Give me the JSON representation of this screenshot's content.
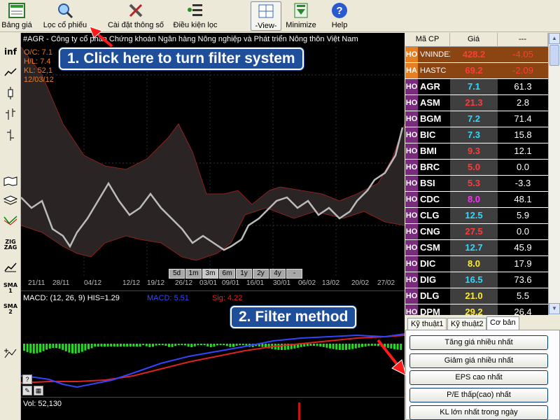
{
  "toolbar": {
    "items": [
      {
        "label": "Bảng giá",
        "icon": "price-board-icon"
      },
      {
        "label": "Lọc cổ phiếu",
        "icon": "magnifier-icon"
      },
      {
        "label": "Cài đặt thông số",
        "icon": "tools-icon"
      },
      {
        "label": "Điều kiện lọc",
        "icon": "filter-conditions-icon"
      },
      {
        "label": "-View-",
        "icon": "view-grid-icon"
      },
      {
        "label": "Minimize",
        "icon": "minimize-icon"
      },
      {
        "label": "Help",
        "icon": "help-icon"
      }
    ]
  },
  "left_tools": [
    "inf",
    "ZIG ZAG",
    "SMA 1",
    "SMA 2"
  ],
  "chart": {
    "title": "#AGR - Công ty cổ phần Chứng khoán Ngân hàng Nông nghiệp và Phát triển Nông thôn Việt Nam",
    "ohl": [
      "O/C: 7.1",
      "H/L: 7.4",
      "KL: 52,1",
      "12/03/12"
    ],
    "periods": [
      "5d",
      "1m",
      "3m",
      "6m",
      "1y",
      "2y",
      "4y",
      "-"
    ],
    "active_period": "3m",
    "dates": [
      "21/11",
      "28/11",
      "04/12",
      "12/12",
      "19/12",
      "26/12",
      "03/01",
      "09/01",
      "16/01",
      "30/01",
      "06/02",
      "13/02",
      "20/02",
      "27/02"
    ],
    "macd_label": "MACD: (12, 26, 9) HIS=1.29",
    "macd_value": "MACD: 5.51",
    "sig_value": "Sig: 4.22",
    "vol_label": "Vol: 52,130",
    "colors": {
      "price": "#bbbbbb",
      "band": "#8b2020",
      "macd": "#3344ff",
      "signal": "#dd2222",
      "hist": "#22dd22"
    }
  },
  "callouts": {
    "c1": "1. Click here to turn filter system",
    "c2": "2. Filter method"
  },
  "quotes": {
    "headers": [
      "Mã CP",
      "Giá",
      "---"
    ],
    "rows": [
      {
        "ex": "HO",
        "sym": "VNINDEX",
        "price": "428.2",
        "chg": "-4.05",
        "pc": "#ff3b3b",
        "cc": "#ff3b3b",
        "idx": true
      },
      {
        "ex": "HA",
        "sym": "HASTC",
        "price": "69.2",
        "chg": "-2.09",
        "pc": "#ff3b3b",
        "cc": "#ff3b3b",
        "idx": true
      },
      {
        "ex": "HO",
        "sym": "AGR",
        "price": "7.1",
        "chg": "61.3",
        "pc": "#2fd9ff",
        "cc": "#ffffff"
      },
      {
        "ex": "HO",
        "sym": "ASM",
        "price": "21.3",
        "chg": "2.8",
        "pc": "#ff3b3b",
        "cc": "#ffffff"
      },
      {
        "ex": "HO",
        "sym": "BGM",
        "price": "7.2",
        "chg": "71.4",
        "pc": "#2fd9ff",
        "cc": "#ffffff"
      },
      {
        "ex": "HO",
        "sym": "BIC",
        "price": "7.3",
        "chg": "15.8",
        "pc": "#2fd9ff",
        "cc": "#ffffff"
      },
      {
        "ex": "HO",
        "sym": "BMI",
        "price": "9.3",
        "chg": "12.1",
        "pc": "#ff3b3b",
        "cc": "#ffffff"
      },
      {
        "ex": "HO",
        "sym": "BRC",
        "price": "5.0",
        "chg": "0.0",
        "pc": "#ff3b3b",
        "cc": "#ffffff"
      },
      {
        "ex": "HO",
        "sym": "BSI",
        "price": "5.3",
        "chg": "-3.3",
        "pc": "#ff3b3b",
        "cc": "#ffffff"
      },
      {
        "ex": "HO",
        "sym": "CDC",
        "price": "8.0",
        "chg": "48.1",
        "pc": "#ff2cff",
        "cc": "#ffffff"
      },
      {
        "ex": "HO",
        "sym": "CLG",
        "price": "12.5",
        "chg": "5.9",
        "pc": "#2fd9ff",
        "cc": "#ffffff"
      },
      {
        "ex": "HO",
        "sym": "CNG",
        "price": "27.5",
        "chg": "0.0",
        "pc": "#ff3b3b",
        "cc": "#ffffff"
      },
      {
        "ex": "HO",
        "sym": "CSM",
        "price": "12.7",
        "chg": "45.9",
        "pc": "#2fd9ff",
        "cc": "#ffffff"
      },
      {
        "ex": "HO",
        "sym": "DIC",
        "price": "8.0",
        "chg": "17.9",
        "pc": "#ffee22",
        "cc": "#ffffff"
      },
      {
        "ex": "HO",
        "sym": "DIG",
        "price": "16.5",
        "chg": "73.6",
        "pc": "#2fd9ff",
        "cc": "#ffffff"
      },
      {
        "ex": "HO",
        "sym": "DLG",
        "price": "21.0",
        "chg": "5.5",
        "pc": "#ffee22",
        "cc": "#ffffff"
      },
      {
        "ex": "HO",
        "sym": "DPM",
        "price": "29.2",
        "chg": "26.4",
        "pc": "#ffee22",
        "cc": "#ffffff"
      }
    ]
  },
  "tabs": [
    "Kỹ thuật1",
    "Kỹ thuật2",
    "Cơ bản"
  ],
  "active_tab": "Cơ bản",
  "filters": [
    "Tăng giá nhiều nhất",
    "Giảm giá nhiều nhất",
    "EPS cao nhất",
    "P/E thấp(cao) nhất",
    "KL lớn nhất trong ngày"
  ]
}
